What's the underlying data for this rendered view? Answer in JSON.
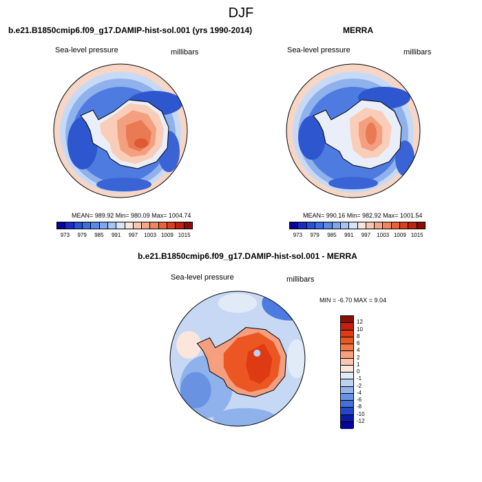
{
  "page": {
    "title": "DJF"
  },
  "panels": {
    "model": {
      "title": "b.e21.B1850cmip6.f09_g17.DAMIP-hist-sol.001 (yrs 1990-2014)",
      "left_label": "Sea-level pressure",
      "right_label": "millibars",
      "stats": "MEAN= 989.92   Min= 980.09   Max= 1004.74"
    },
    "obs": {
      "title": "MERRA",
      "left_label": "Sea-level pressure",
      "right_label": "millibars",
      "stats": "MEAN= 990.16   Min= 982.92   Max= 1001.54"
    },
    "diff": {
      "title": "b.e21.B1850cmip6.f09_g17.DAMIP-hist-sol.001 - MERRA",
      "left_label": "Sea-level pressure",
      "right_label": "millibars",
      "stats": "MIN =  -6.70  MAX =   9.04"
    }
  },
  "abs_colorbar": {
    "ticks": [
      "973",
      "979",
      "985",
      "991",
      "997",
      "1003",
      "1009",
      "1015"
    ],
    "colors": [
      "#050597",
      "#1a2bc4",
      "#2a52d8",
      "#3b6fe2",
      "#5a8ae8",
      "#7fa7ee",
      "#a7c4f3",
      "#d5e4f8",
      "#fbe6dc",
      "#f8c7b2",
      "#f4a689",
      "#ef8460",
      "#e8623c",
      "#d9401f",
      "#bd2412",
      "#8c0d06"
    ]
  },
  "diff_colorbar": {
    "ticks": [
      "12",
      "10",
      "8",
      "6",
      "4",
      "2",
      "1",
      "0",
      "-1",
      "-2",
      "-4",
      "-6",
      "-8",
      "-10",
      "-12"
    ],
    "colors": [
      "#8c0d06",
      "#c3200e",
      "#de3a14",
      "#ec5622",
      "#f27a48",
      "#f6a07e",
      "#f9c6b0",
      "#fce6dc",
      "#e1ebf8",
      "#bcd2f3",
      "#93b4ec",
      "#6a92e3",
      "#4470da",
      "#2446c8",
      "#0a1aa6",
      "#050597"
    ]
  }
}
